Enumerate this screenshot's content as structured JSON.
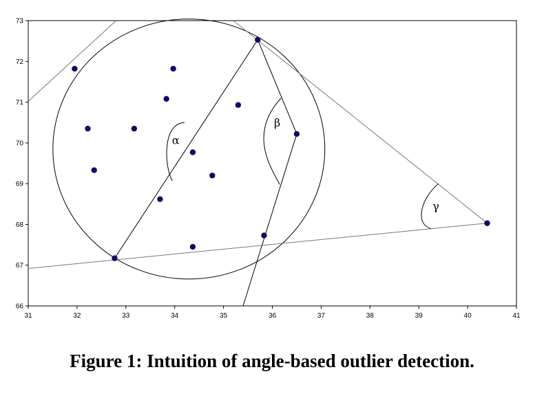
{
  "caption": "Figure 1: Intuition of angle-based outlier detection.",
  "chart_data": {
    "type": "scatter",
    "title": "",
    "xlabel": "",
    "ylabel": "",
    "xlim": [
      31,
      41
    ],
    "ylim": [
      66,
      73
    ],
    "xticks": [
      31,
      32,
      33,
      34,
      35,
      36,
      37,
      38,
      39,
      40,
      41
    ],
    "yticks": [
      66,
      67,
      68,
      69,
      70,
      71,
      72,
      73
    ],
    "grid": false,
    "point_color": "#0a0a66",
    "points": [
      {
        "x": 31.95,
        "y": 71.82
      },
      {
        "x": 33.97,
        "y": 71.82
      },
      {
        "x": 33.83,
        "y": 71.08
      },
      {
        "x": 35.3,
        "y": 70.93
      },
      {
        "x": 32.22,
        "y": 70.35
      },
      {
        "x": 33.17,
        "y": 70.35
      },
      {
        "x": 32.35,
        "y": 69.33
      },
      {
        "x": 34.37,
        "y": 69.77
      },
      {
        "x": 34.77,
        "y": 69.2
      },
      {
        "x": 33.7,
        "y": 68.62
      },
      {
        "x": 34.37,
        "y": 67.45
      },
      {
        "x": 32.77,
        "y": 67.17
      },
      {
        "x": 35.7,
        "y": 72.53
      },
      {
        "x": 36.5,
        "y": 70.22
      },
      {
        "x": 35.83,
        "y": 67.73
      },
      {
        "x": 40.4,
        "y": 68.03
      }
    ],
    "circle": {
      "cx": 34.29,
      "cy": 69.85,
      "r_x": 2.785,
      "r_y": 3.19
    },
    "lines": [
      {
        "from": [
          32.77,
          67.17
        ],
        "to": [
          35.7,
          72.53
        ]
      },
      {
        "from": [
          35.4,
          66.0
        ],
        "to": [
          36.5,
          70.22
        ]
      },
      {
        "from": [
          36.5,
          70.22
        ],
        "to": [
          35.7,
          72.53
        ]
      },
      {
        "from": [
          31.0,
          66.92
        ],
        "to": [
          40.4,
          68.03
        ]
      },
      {
        "from": [
          35.2,
          73.0
        ],
        "to": [
          40.4,
          68.03
        ]
      },
      {
        "from": [
          31.0,
          71.02
        ],
        "to": [
          32.8,
          73.0
        ]
      }
    ],
    "angle_arcs": [
      {
        "label": "α",
        "path": [
          [
            34.2,
            70.5
          ],
          [
            33.75,
            70.48
          ],
          [
            33.78,
            69.45
          ],
          [
            33.95,
            69.07
          ]
        ],
        "label_at": [
          34.02,
          69.97
        ]
      },
      {
        "label": "β",
        "path": [
          [
            36.18,
            71.1
          ],
          [
            35.5,
            70.22
          ],
          [
            35.97,
            69.4
          ],
          [
            36.15,
            68.98
          ]
        ],
        "label_at": [
          36.1,
          70.4
        ]
      },
      {
        "label": "γ",
        "path": [
          [
            39.4,
            69.0
          ],
          [
            39.0,
            68.58
          ],
          [
            38.94,
            67.98
          ],
          [
            39.25,
            67.9
          ]
        ],
        "label_at": [
          39.35,
          68.35
        ]
      }
    ]
  }
}
